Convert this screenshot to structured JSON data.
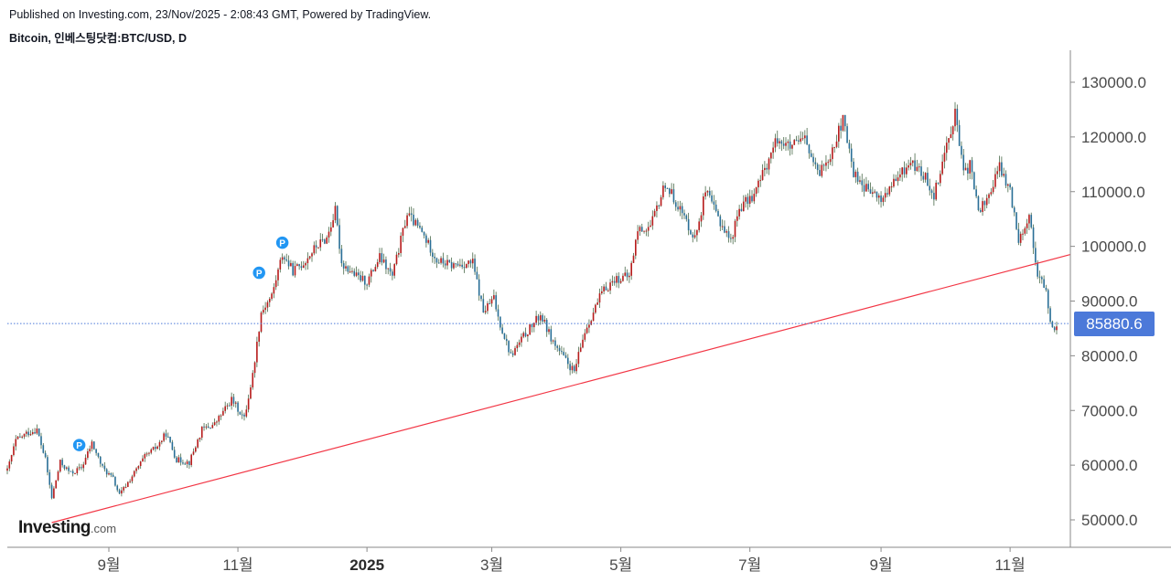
{
  "header": {
    "published": "Published on Investing.com, 23/Nov/2025 - 2:08:43 GMT, Powered by TradingView.",
    "symbol": "Bitcoin, 인베스팅닷컴:BTC/USD, D"
  },
  "logo": {
    "main": "Investing",
    "suffix": ".com"
  },
  "colors": {
    "up": "#b71c1c",
    "down": "#2a6f97",
    "trendline": "#f23645",
    "last_price_line": "#4c79d9",
    "badge": "#4c79d9"
  },
  "chart_data": {
    "type": "candlestick",
    "title": "Bitcoin, 인베스팅닷컴:BTC/USD, D",
    "y_ticks": [
      "130000.0",
      "120000.0",
      "110000.0",
      "100000.0",
      "90000.0",
      "80000.0",
      "70000.0",
      "60000.0",
      "50000.0"
    ],
    "y_tick_values": [
      130000,
      120000,
      110000,
      100000,
      90000,
      80000,
      70000,
      60000,
      50000
    ],
    "ylim": [
      45000,
      135000
    ],
    "x_labels": [
      {
        "text": "9월",
        "date": "2024-09-01",
        "bold": false
      },
      {
        "text": "11월",
        "date": "2024-11-01",
        "bold": false
      },
      {
        "text": "2025",
        "date": "2025-01-01",
        "bold": true
      },
      {
        "text": "3월",
        "date": "2025-03-01",
        "bold": false
      },
      {
        "text": "5월",
        "date": "2025-05-01",
        "bold": false
      },
      {
        "text": "7월",
        "date": "2025-07-01",
        "bold": false
      },
      {
        "text": "9월",
        "date": "2025-09-01",
        "bold": false
      },
      {
        "text": "11월",
        "date": "2025-11-01",
        "bold": false
      }
    ],
    "x_start": "2024-07-15",
    "x_end": "2025-11-23",
    "last_price": "85880.6",
    "last_price_value": 85880.6,
    "trendline": {
      "from": {
        "date": "2024-08-05",
        "value": 49500
      },
      "to": {
        "date": "2025-11-23",
        "value": 98500
      }
    },
    "markers": [
      {
        "date": "2024-08-18",
        "value": 63000,
        "label": "P"
      },
      {
        "date": "2024-11-11",
        "value": 94500,
        "label": "P"
      },
      {
        "date": "2024-11-22",
        "value": 100000,
        "label": "P"
      }
    ],
    "closes": [
      [
        "2024-07-15",
        59000
      ],
      [
        "2024-07-19",
        64500
      ],
      [
        "2024-07-24",
        65800
      ],
      [
        "2024-07-29",
        66500
      ],
      [
        "2024-08-02",
        61000
      ],
      [
        "2024-08-05",
        54000
      ],
      [
        "2024-08-09",
        60500
      ],
      [
        "2024-08-14",
        58500
      ],
      [
        "2024-08-19",
        59500
      ],
      [
        "2024-08-24",
        64000
      ],
      [
        "2024-08-29",
        59500
      ],
      [
        "2024-09-03",
        57500
      ],
      [
        "2024-09-06",
        54500
      ],
      [
        "2024-09-12",
        58000
      ],
      [
        "2024-09-18",
        61500
      ],
      [
        "2024-09-24",
        63500
      ],
      [
        "2024-09-28",
        65800
      ],
      [
        "2024-10-03",
        61000
      ],
      [
        "2024-10-09",
        60500
      ],
      [
        "2024-10-15",
        66500
      ],
      [
        "2024-10-21",
        67500
      ],
      [
        "2024-10-29",
        72000
      ],
      [
        "2024-11-04",
        68500
      ],
      [
        "2024-11-08",
        76500
      ],
      [
        "2024-11-12",
        88000
      ],
      [
        "2024-11-17",
        91000
      ],
      [
        "2024-11-22",
        98500
      ],
      [
        "2024-11-27",
        95500
      ],
      [
        "2024-12-02",
        97000
      ],
      [
        "2024-12-08",
        100000
      ],
      [
        "2024-12-13",
        101500
      ],
      [
        "2024-12-17",
        106500
      ],
      [
        "2024-12-20",
        97000
      ],
      [
        "2024-12-27",
        94500
      ],
      [
        "2025-01-01",
        93500
      ],
      [
        "2025-01-07",
        98000
      ],
      [
        "2025-01-13",
        94500
      ],
      [
        "2025-01-20",
        106000
      ],
      [
        "2025-01-27",
        102500
      ],
      [
        "2025-02-03",
        97500
      ],
      [
        "2025-02-10",
        96500
      ],
      [
        "2025-02-20",
        97000
      ],
      [
        "2025-02-25",
        88000
      ],
      [
        "2025-03-02",
        90500
      ],
      [
        "2025-03-04",
        87000
      ],
      [
        "2025-03-10",
        80000
      ],
      [
        "2025-03-16",
        83500
      ],
      [
        "2025-03-24",
        87500
      ],
      [
        "2025-03-30",
        82500
      ],
      [
        "2025-04-06",
        78500
      ],
      [
        "2025-04-09",
        77000
      ],
      [
        "2025-04-14",
        84500
      ],
      [
        "2025-04-22",
        91500
      ],
      [
        "2025-04-28",
        94000
      ],
      [
        "2025-05-05",
        94500
      ],
      [
        "2025-05-09",
        103000
      ],
      [
        "2025-05-15",
        103500
      ],
      [
        "2025-05-22",
        111500
      ],
      [
        "2025-05-28",
        107500
      ],
      [
        "2025-06-05",
        101500
      ],
      [
        "2025-06-10",
        110000
      ],
      [
        "2025-06-17",
        104500
      ],
      [
        "2025-06-22",
        101000
      ],
      [
        "2025-06-26",
        107000
      ],
      [
        "2025-07-03",
        109500
      ],
      [
        "2025-07-10",
        116000
      ],
      [
        "2025-07-14",
        119800
      ],
      [
        "2025-07-20",
        118000
      ],
      [
        "2025-07-27",
        119500
      ],
      [
        "2025-08-02",
        113000
      ],
      [
        "2025-08-08",
        117000
      ],
      [
        "2025-08-14",
        123000
      ],
      [
        "2025-08-19",
        113500
      ],
      [
        "2025-08-25",
        110500
      ],
      [
        "2025-09-01",
        108500
      ],
      [
        "2025-09-08",
        112000
      ],
      [
        "2025-09-15",
        115500
      ],
      [
        "2025-09-22",
        112500
      ],
      [
        "2025-09-26",
        109500
      ],
      [
        "2025-10-02",
        118500
      ],
      [
        "2025-10-06",
        124500
      ],
      [
        "2025-10-10",
        113000
      ],
      [
        "2025-10-13",
        115000
      ],
      [
        "2025-10-17",
        106500
      ],
      [
        "2025-10-21",
        108500
      ],
      [
        "2025-10-27",
        114500
      ],
      [
        "2025-11-01",
        110000
      ],
      [
        "2025-11-05",
        101500
      ],
      [
        "2025-11-10",
        105500
      ],
      [
        "2025-11-14",
        95000
      ],
      [
        "2025-11-18",
        91500
      ],
      [
        "2025-11-21",
        84500
      ],
      [
        "2025-11-23",
        85880
      ]
    ]
  }
}
